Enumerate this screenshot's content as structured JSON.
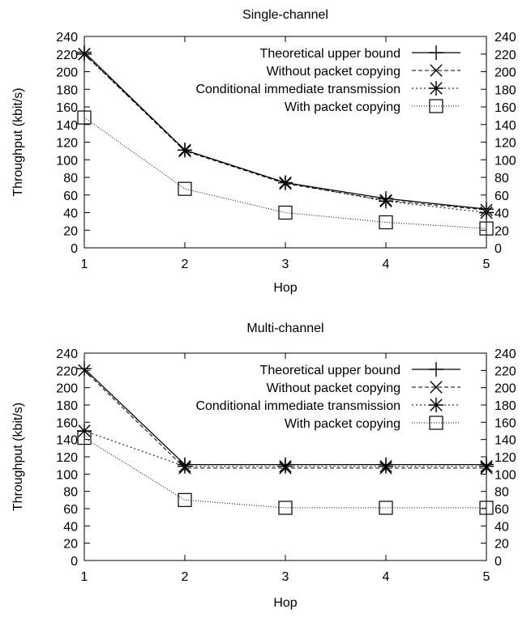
{
  "chart_data": [
    {
      "type": "line",
      "title": "Single-channel",
      "xlabel": "Hop",
      "ylabel": "Throughput (kbit/s)",
      "x": [
        1,
        2,
        3,
        4,
        5
      ],
      "xlim": [
        1,
        5
      ],
      "ylim": [
        0,
        240
      ],
      "yticks": [
        0,
        20,
        40,
        60,
        80,
        100,
        120,
        140,
        160,
        180,
        200,
        220,
        240
      ],
      "grid": false,
      "legend_position": "top-right",
      "series": [
        {
          "name": "Theoretical upper bound",
          "marker": "plus",
          "dash": "solid",
          "values": [
            222,
            111,
            74,
            56,
            44
          ]
        },
        {
          "name": "Without packet copying",
          "marker": "cross",
          "dash": "dashed",
          "values": [
            220,
            110,
            73,
            54,
            43
          ]
        },
        {
          "name": "Conditional immediate transmission",
          "marker": "star",
          "dash": "dotted",
          "values": [
            220,
            111,
            74,
            53,
            40
          ]
        },
        {
          "name": "With packet copying",
          "marker": "square",
          "dash": "fine-dotted",
          "values": [
            148,
            67,
            40,
            29,
            22
          ]
        }
      ]
    },
    {
      "type": "line",
      "title": "Multi-channel",
      "xlabel": "Hop",
      "ylabel": "Throughput (kbit/s)",
      "x": [
        1,
        2,
        3,
        4,
        5
      ],
      "xlim": [
        1,
        5
      ],
      "ylim": [
        0,
        240
      ],
      "yticks": [
        0,
        20,
        40,
        60,
        80,
        100,
        120,
        140,
        160,
        180,
        200,
        220,
        240
      ],
      "grid": false,
      "legend_position": "top-right",
      "series": [
        {
          "name": "Theoretical upper bound",
          "marker": "plus",
          "dash": "solid",
          "values": [
            222,
            111,
            111,
            111,
            111
          ]
        },
        {
          "name": "Without packet copying",
          "marker": "cross",
          "dash": "dashed",
          "values": [
            220,
            107,
            107,
            107,
            107
          ]
        },
        {
          "name": "Conditional immediate transmission",
          "marker": "star",
          "dash": "dotted",
          "values": [
            150,
            109,
            109,
            109,
            109
          ]
        },
        {
          "name": "With packet copying",
          "marker": "square",
          "dash": "fine-dotted",
          "values": [
            142,
            70,
            61,
            61,
            61
          ]
        }
      ]
    }
  ]
}
